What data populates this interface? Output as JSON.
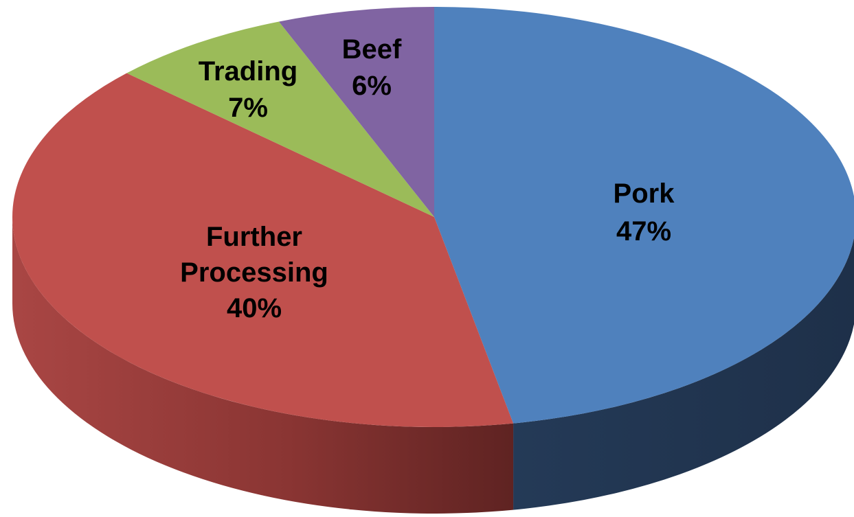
{
  "chart_data": {
    "type": "pie",
    "style": "3d",
    "title": "",
    "start_angle_deg": 0,
    "direction": "clockwise",
    "slices": [
      {
        "label": "Pork",
        "value": 47,
        "display": "47%",
        "color": "#4F81BD",
        "side_color": "#1F3350"
      },
      {
        "label": "Further Processing",
        "value": 40,
        "display": "40%",
        "color": "#C0504D",
        "side_color": "#8A3532"
      },
      {
        "label": "Trading",
        "value": 7,
        "display": "7%",
        "color": "#9BBB59",
        "side_color": "#5E7335"
      },
      {
        "label": "Beef",
        "value": 6,
        "display": "6%",
        "color": "#8064A2",
        "side_color": "#4E3D63"
      }
    ],
    "legend": "none",
    "data_labels": "inside"
  }
}
